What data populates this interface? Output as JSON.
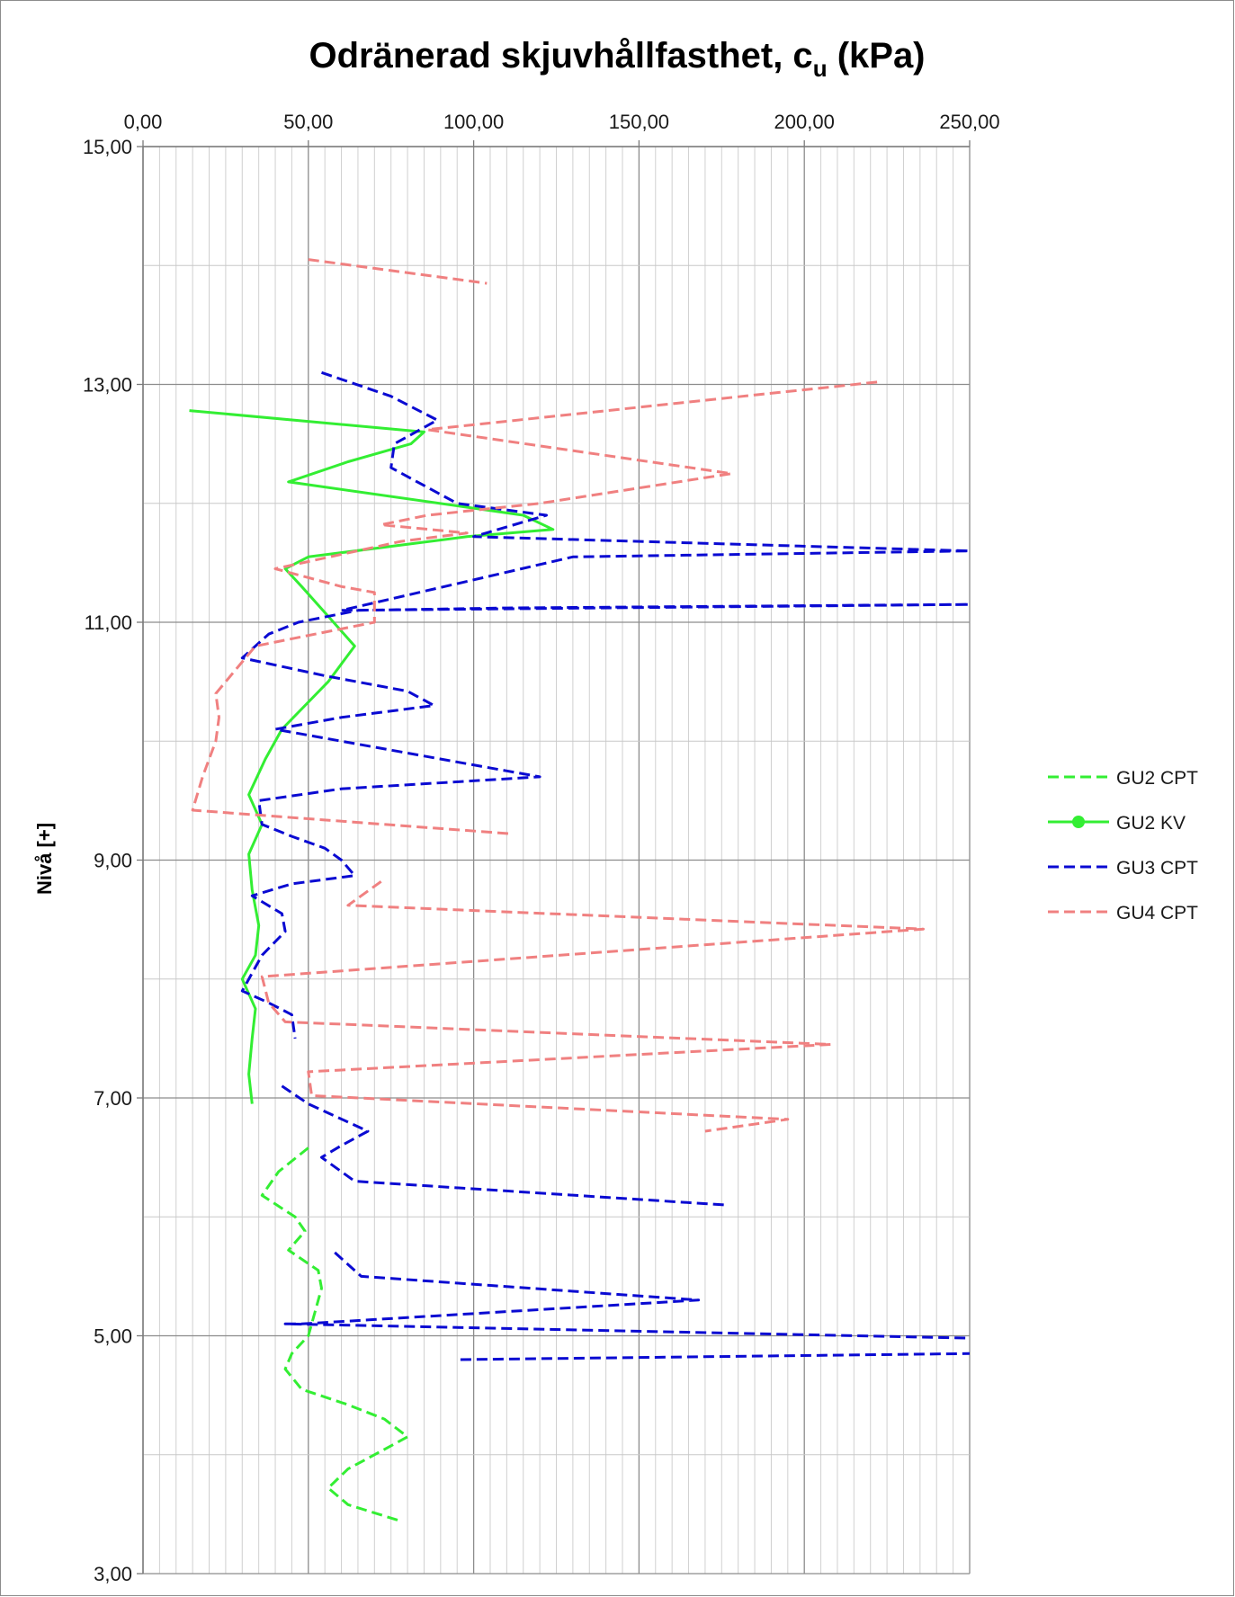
{
  "chart_data": {
    "type": "line",
    "title": "Odränerad skjuvhållfasthet, c",
    "title_sub": "u",
    "title_suffix": " (kPa)",
    "xlabel": "",
    "ylabel": "Nivå [+]",
    "xlim": [
      0,
      250
    ],
    "ylim": [
      3,
      15
    ],
    "x_ticks": [
      "0,00",
      "50,00",
      "100,00",
      "150,00",
      "200,00",
      "250,00"
    ],
    "y_ticks": [
      "15,00",
      "13,00",
      "11,00",
      "9,00",
      "7,00",
      "5,00",
      "3,00"
    ],
    "x_axis_position": "top",
    "grid": true,
    "legend_position": "right",
    "series": [
      {
        "name": "GU2 CPT",
        "color": "#33ee33",
        "style": "dashed",
        "marker": "none",
        "points": [
          [
            50,
            6.58
          ],
          [
            41,
            6.38
          ],
          [
            36,
            6.18
          ],
          [
            46,
            6.0
          ],
          [
            49,
            5.88
          ],
          [
            44,
            5.72
          ],
          [
            53,
            5.55
          ],
          [
            54,
            5.4
          ],
          [
            52,
            5.2
          ],
          [
            50,
            5.0
          ],
          [
            45,
            4.85
          ],
          [
            43,
            4.72
          ],
          [
            48,
            4.55
          ],
          [
            62,
            4.42
          ],
          [
            73,
            4.3
          ],
          [
            80,
            4.15
          ],
          [
            70,
            4.0
          ],
          [
            62,
            3.88
          ],
          [
            56,
            3.72
          ],
          [
            62,
            3.58
          ],
          [
            77,
            3.45
          ]
        ]
      },
      {
        "name": "GU2 KV",
        "color": "#33ee33",
        "style": "solid",
        "marker": "circle",
        "points": [
          [
            14,
            12.78
          ],
          [
            85,
            12.6
          ],
          [
            81,
            12.5
          ],
          [
            62,
            12.35
          ],
          [
            44,
            12.18
          ],
          [
            115,
            11.9
          ],
          [
            124,
            11.78
          ],
          [
            98,
            11.72
          ],
          [
            50,
            11.55
          ],
          [
            43,
            11.45
          ],
          [
            48,
            11.3
          ],
          [
            56,
            11.05
          ],
          [
            64,
            10.8
          ],
          [
            56,
            10.5
          ],
          [
            42,
            10.1
          ],
          [
            37,
            9.85
          ],
          [
            32,
            9.55
          ],
          [
            36,
            9.3
          ],
          [
            32,
            9.05
          ],
          [
            33,
            8.75
          ],
          [
            35,
            8.45
          ],
          [
            34,
            8.2
          ],
          [
            30,
            8.0
          ],
          [
            34,
            7.75
          ],
          [
            33,
            7.5
          ],
          [
            32,
            7.2
          ],
          [
            33,
            6.95
          ]
        ]
      },
      {
        "name": "GU3 CPT",
        "color": "#0a0ad2",
        "style": "dashed",
        "marker": "none",
        "points": [
          [
            54,
            13.1
          ],
          [
            75,
            12.9
          ],
          [
            89,
            12.7
          ],
          [
            76,
            12.5
          ],
          [
            75,
            12.3
          ],
          [
            95,
            12.0
          ],
          [
            122,
            11.9
          ],
          [
            100,
            11.72
          ],
          [
            250,
            11.6
          ],
          [
            130,
            11.55
          ],
          [
            60,
            11.1
          ],
          [
            250,
            11.15
          ],
          [
            110,
            11.12
          ],
          [
            65,
            11.1
          ],
          [
            47,
            11.0
          ],
          [
            38,
            10.9
          ],
          [
            30,
            10.7
          ],
          [
            55,
            10.55
          ],
          [
            80,
            10.42
          ],
          [
            88,
            10.3
          ],
          [
            60,
            10.2
          ],
          [
            40,
            10.1
          ],
          [
            80,
            9.9
          ],
          [
            110,
            9.75
          ],
          [
            120,
            9.7
          ],
          [
            60,
            9.6
          ],
          [
            35,
            9.5
          ],
          [
            36,
            9.3
          ],
          [
            45,
            9.2
          ],
          [
            55,
            9.1
          ],
          [
            60,
            9.0
          ],
          [
            64,
            8.87
          ],
          [
            45,
            8.8
          ],
          [
            33,
            8.7
          ],
          [
            42,
            8.55
          ],
          [
            43,
            8.4
          ],
          [
            36,
            8.2
          ],
          [
            30,
            7.9
          ],
          [
            38,
            7.8
          ],
          [
            45,
            7.7
          ],
          [
            46,
            7.5
          ]
        ]
      },
      {
        "name": "GU3 CPT",
        "color": "#0a0ad2",
        "style": "dashed",
        "marker": "none",
        "points": [
          [
            42,
            7.1
          ],
          [
            50,
            6.95
          ],
          [
            68,
            6.72
          ],
          [
            60,
            6.6
          ],
          [
            54,
            6.5
          ],
          [
            64,
            6.3
          ],
          [
            176,
            6.1
          ]
        ]
      },
      {
        "name": "GU3 CPT",
        "color": "#0a0ad2",
        "style": "dashed",
        "marker": "none",
        "points": [
          [
            58,
            5.7
          ],
          [
            66,
            5.5
          ],
          [
            168,
            5.3
          ],
          [
            48,
            5.1
          ],
          [
            43,
            5.1
          ],
          [
            250,
            4.98
          ]
        ]
      },
      {
        "name": "GU3 CPT",
        "color": "#0a0ad2",
        "style": "dashed",
        "marker": "none",
        "points": [
          [
            96,
            4.8
          ],
          [
            250,
            4.85
          ]
        ]
      },
      {
        "name": "GU4 CPT",
        "color": "#f08080",
        "style": "dashed",
        "marker": "none",
        "points": [
          [
            50,
            14.05
          ],
          [
            104,
            13.85
          ]
        ]
      },
      {
        "name": "GU4 CPT",
        "color": "#f08080",
        "style": "dashed",
        "marker": "none",
        "points": [
          [
            222,
            13.02
          ],
          [
            86,
            12.62
          ],
          [
            178,
            12.25
          ],
          [
            120,
            12.0
          ],
          [
            86,
            11.9
          ],
          [
            72,
            11.82
          ],
          [
            98,
            11.75
          ],
          [
            78,
            11.68
          ],
          [
            40,
            11.45
          ],
          [
            60,
            11.3
          ],
          [
            70,
            11.25
          ],
          [
            70,
            11.0
          ],
          [
            52,
            10.9
          ],
          [
            34,
            10.8
          ],
          [
            28,
            10.6
          ],
          [
            22,
            10.4
          ],
          [
            23,
            10.2
          ],
          [
            22,
            10.0
          ],
          [
            18,
            9.7
          ],
          [
            15,
            9.42
          ],
          [
            112,
            9.22
          ]
        ]
      },
      {
        "name": "GU4 CPT",
        "color": "#f08080",
        "style": "dashed",
        "marker": "none",
        "points": [
          [
            72,
            8.82
          ],
          [
            62,
            8.62
          ],
          [
            236,
            8.42
          ],
          [
            36,
            8.02
          ],
          [
            38,
            7.8
          ],
          [
            43,
            7.64
          ],
          [
            208,
            7.45
          ],
          [
            50,
            7.22
          ],
          [
            51,
            7.02
          ],
          [
            195,
            6.82
          ],
          [
            170,
            6.72
          ]
        ]
      }
    ],
    "legend": [
      {
        "label": "GU2 CPT",
        "color": "#33ee33",
        "style": "dashed",
        "marker": "none"
      },
      {
        "label": "GU2 KV",
        "color": "#33ee33",
        "style": "solid",
        "marker": "circle"
      },
      {
        "label": "GU3 CPT",
        "color": "#0a0ad2",
        "style": "dashed",
        "marker": "none"
      },
      {
        "label": "GU4 CPT",
        "color": "#f08080",
        "style": "dashed",
        "marker": "none"
      }
    ]
  }
}
